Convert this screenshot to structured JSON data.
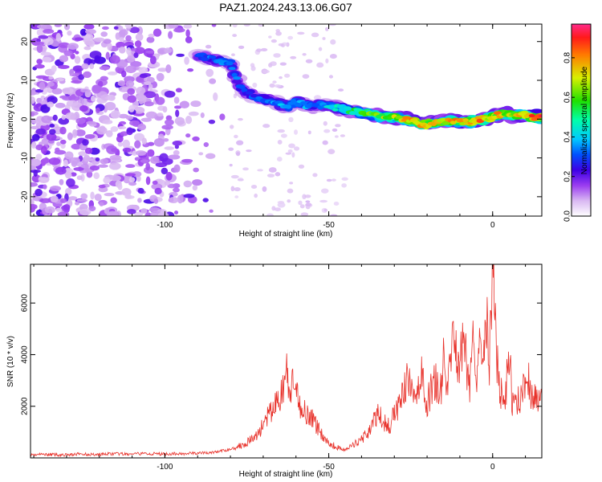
{
  "title": "PAZ1.2024.243.13.06.G07",
  "chart_data": [
    {
      "type": "heatmap",
      "xlabel": "Height of straight line (km)",
      "ylabel": "Frequency (Hz)",
      "xlim": [
        -141,
        15
      ],
      "ylim": [
        -25,
        24.5
      ],
      "x_ticks": [
        -100,
        -50,
        0
      ],
      "x_tick_labels": [
        "-100",
        "-50",
        "0"
      ],
      "y_ticks": [
        -20,
        -10,
        0,
        10,
        20
      ],
      "y_tick_labels": [
        "-20",
        "-10",
        "0",
        "10",
        "20"
      ],
      "colorbar": {
        "label": "Normalized spectral amplitude",
        "range": [
          0,
          0.97
        ],
        "ticks": [
          0.0,
          0.2,
          0.4,
          0.6,
          0.8
        ],
        "tick_labels": [
          "0.0",
          "0.2",
          "0.4",
          "0.6",
          "0.8"
        ]
      },
      "noise_region_x": [
        -141,
        -80
      ],
      "signal_track": {
        "x": [
          -90,
          -86,
          -83,
          -80,
          -77,
          -75,
          -72,
          -69,
          -66,
          -63,
          -60,
          -57,
          -54,
          -51,
          -48,
          -45,
          -42,
          -39,
          -36,
          -33,
          -30,
          -27,
          -24,
          -21,
          -18,
          -15,
          -12,
          -9,
          -6,
          -3,
          0,
          3,
          6,
          9,
          12,
          15
        ],
        "frequency": [
          16.5,
          15.5,
          14.8,
          14.5,
          8.0,
          7.0,
          5.5,
          5.0,
          4.5,
          3.0,
          4.5,
          3.5,
          3.5,
          3.5,
          3.0,
          2.5,
          2.0,
          1.5,
          1.0,
          0.5,
          0.5,
          0.0,
          -0.5,
          -1.5,
          -1.0,
          -0.5,
          -0.5,
          -1.0,
          -0.5,
          0.0,
          0.5,
          1.5,
          1.0,
          1.0,
          0.5,
          0.5
        ],
        "amplitude": [
          0.3,
          0.35,
          0.35,
          0.4,
          0.3,
          0.3,
          0.32,
          0.35,
          0.38,
          0.4,
          0.38,
          0.4,
          0.38,
          0.4,
          0.45,
          0.5,
          0.55,
          0.6,
          0.65,
          0.7,
          0.72,
          0.75,
          0.8,
          0.85,
          0.8,
          0.75,
          0.78,
          0.8,
          0.85,
          0.85,
          0.82,
          0.75,
          0.7,
          0.8,
          0.9,
          0.92
        ]
      }
    },
    {
      "type": "line",
      "xlabel": "Height of straight line (km)",
      "ylabel": "SNR (10 * v/v)",
      "xlim": [
        -141,
        15
      ],
      "ylim": [
        0,
        7500
      ],
      "x_ticks": [
        -100,
        -50,
        0
      ],
      "x_tick_labels": [
        "-100",
        "-50",
        "0"
      ],
      "y_ticks": [
        2000,
        4000,
        6000
      ],
      "y_tick_labels": [
        "2000",
        "4000",
        "6000"
      ],
      "color": "#e8312a",
      "series": [
        {
          "x": [
            -141,
            -136,
            -131,
            -126,
            -121,
            -116,
            -111,
            -106,
            -101,
            -96,
            -91,
            -86,
            -81,
            -78,
            -75,
            -72,
            -70,
            -68,
            -66,
            -64,
            -63,
            -62,
            -61,
            -59,
            -57,
            -55,
            -53,
            -51,
            -49,
            -47,
            -45,
            -43,
            -41,
            -39,
            -37,
            -35,
            -33,
            -31,
            -30,
            -29,
            -28,
            -27,
            -26,
            -25,
            -24,
            -23,
            -22,
            -21,
            -20,
            -19,
            -18,
            -17,
            -16,
            -15,
            -14,
            -13,
            -12,
            -11,
            -10,
            -9,
            -8,
            -7,
            -6,
            -5,
            -4,
            -3,
            -2,
            -1,
            0,
            1,
            2,
            3,
            4,
            5,
            6,
            7,
            8,
            9,
            10,
            11,
            12,
            13,
            14,
            15
          ],
          "y": [
            120,
            140,
            110,
            150,
            130,
            160,
            140,
            170,
            150,
            160,
            180,
            200,
            300,
            420,
            600,
            850,
            1300,
            1700,
            2100,
            2600,
            3450,
            2400,
            2800,
            2100,
            1800,
            1500,
            1100,
            700,
            500,
            400,
            300,
            450,
            650,
            850,
            1200,
            1700,
            1400,
            1100,
            2000,
            1900,
            2150,
            2600,
            3000,
            2600,
            2300,
            2700,
            3300,
            2700,
            2100,
            2500,
            3100,
            2850,
            2400,
            3700,
            2800,
            3300,
            5000,
            4200,
            3600,
            4400,
            3800,
            2700,
            4700,
            3200,
            5000,
            4100,
            6100,
            3500,
            7500,
            4200,
            3000,
            2200,
            2400,
            4300,
            2000,
            2400,
            2200,
            2700,
            2500,
            2900,
            2300,
            2700,
            2000,
            2400
          ]
        }
      ]
    }
  ]
}
